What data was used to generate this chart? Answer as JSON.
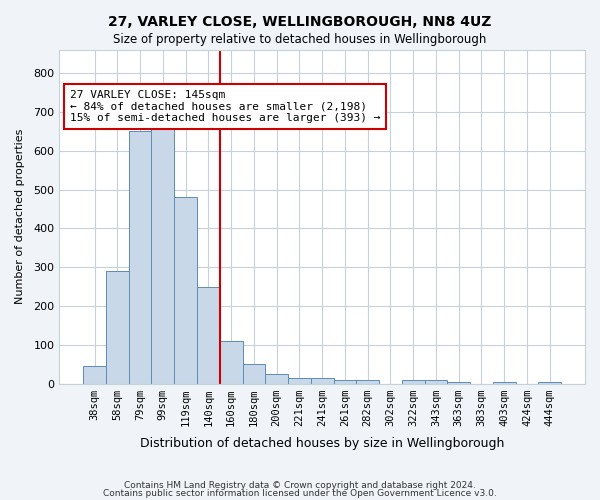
{
  "title1": "27, VARLEY CLOSE, WELLINGBOROUGH, NN8 4UZ",
  "title2": "Size of property relative to detached houses in Wellingborough",
  "xlabel": "Distribution of detached houses by size in Wellingborough",
  "ylabel": "Number of detached properties",
  "bar_color": "#c8d8e8",
  "bar_edge_color": "#5b8db8",
  "bin_labels": [
    "38sqm",
    "58sqm",
    "79sqm",
    "99sqm",
    "119sqm",
    "140sqm",
    "160sqm",
    "180sqm",
    "200sqm",
    "221sqm",
    "241sqm",
    "261sqm",
    "282sqm",
    "302sqm",
    "322sqm",
    "343sqm",
    "363sqm",
    "383sqm",
    "403sqm",
    "424sqm",
    "444sqm"
  ],
  "bar_heights": [
    45,
    290,
    650,
    660,
    480,
    250,
    110,
    50,
    25,
    15,
    15,
    10,
    10,
    0,
    8,
    8,
    5,
    0,
    5,
    0,
    5
  ],
  "ylim": [
    0,
    860
  ],
  "yticks": [
    0,
    100,
    200,
    300,
    400,
    500,
    600,
    700,
    800
  ],
  "vline_x": 5.5,
  "vline_color": "#cc0000",
  "annotation_text": "27 VARLEY CLOSE: 145sqm\n← 84% of detached houses are smaller (2,198)\n15% of semi-detached houses are larger (393) →",
  "annotation_box_color": "white",
  "annotation_box_edge": "#cc0000",
  "footer1": "Contains HM Land Registry data © Crown copyright and database right 2024.",
  "footer2": "Contains public sector information licensed under the Open Government Licence v3.0.",
  "bg_color": "#f0f4f8",
  "plot_bg_color": "white",
  "grid_color": "#c8d0d8"
}
